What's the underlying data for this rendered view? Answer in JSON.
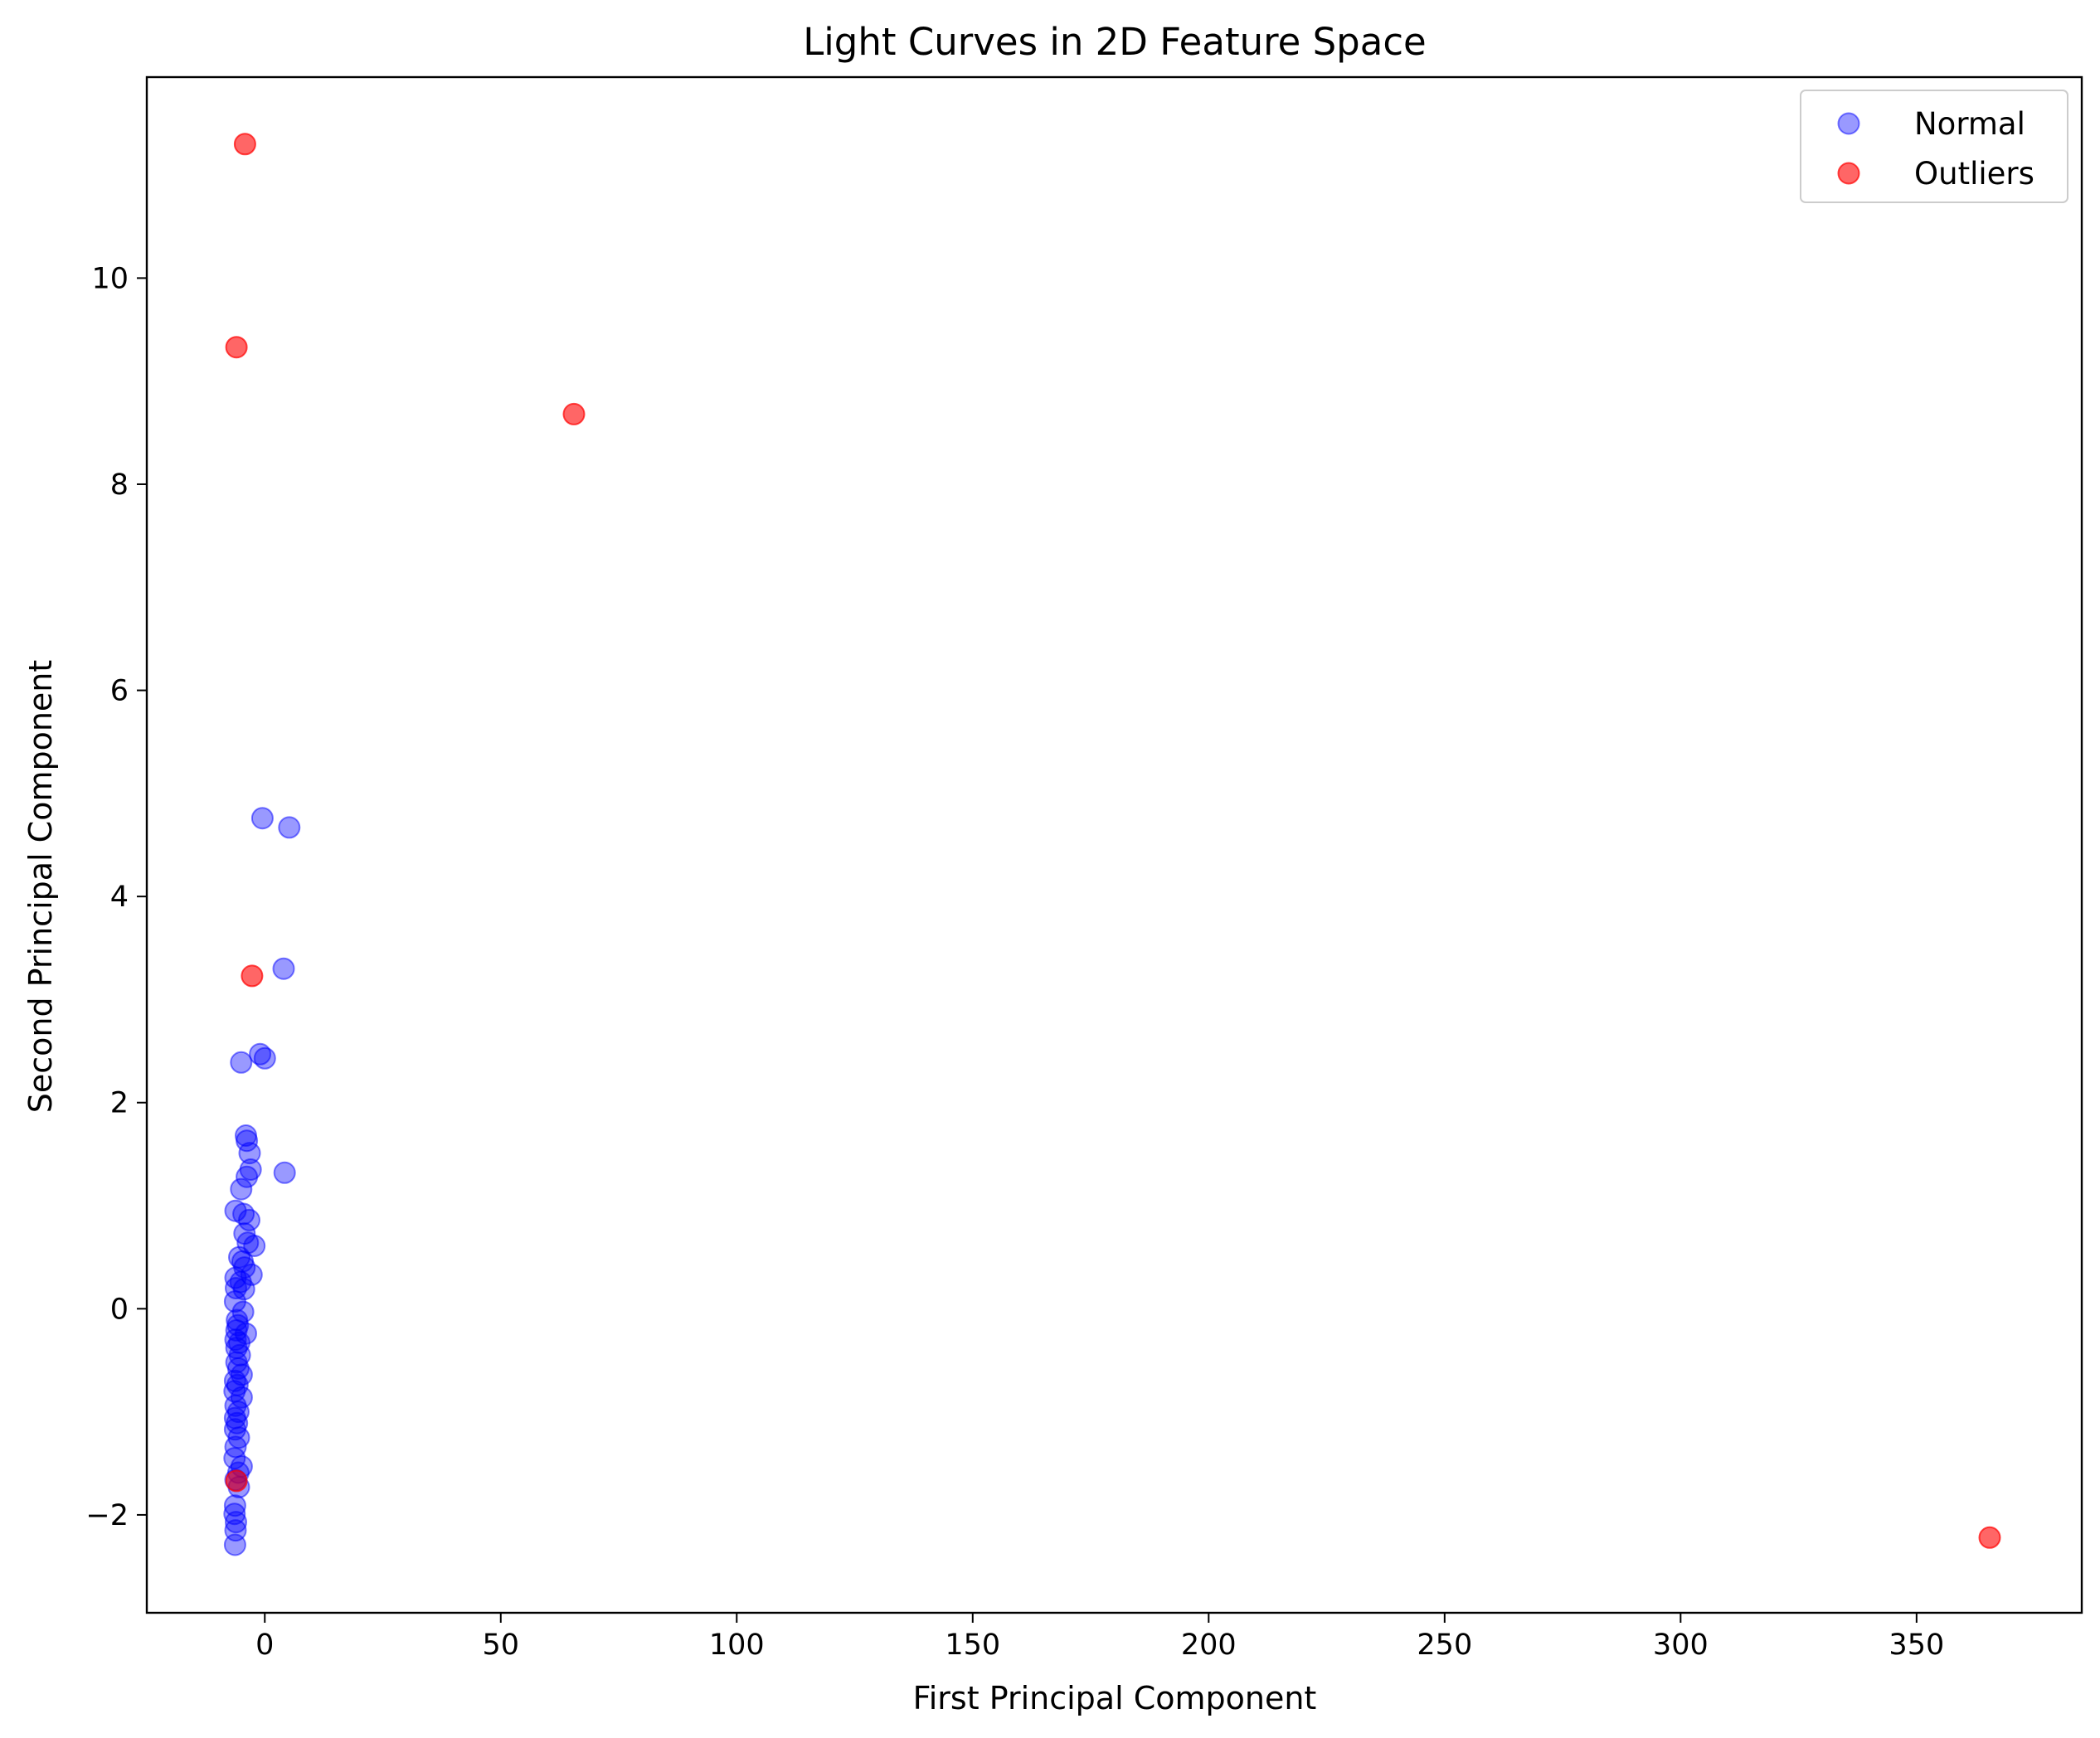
{
  "chart_data": {
    "type": "scatter",
    "title": "Light Curves in 2D Feature Space",
    "xlabel": "First Principal Component",
    "ylabel": "Second Principal Component",
    "xlim": [
      -25,
      385
    ],
    "ylim": [
      -2.95,
      11.95
    ],
    "xticks": [
      0,
      50,
      100,
      150,
      200,
      250,
      300,
      350
    ],
    "xtick_labels": [
      "0",
      "50",
      "100",
      "150",
      "200",
      "250",
      "300",
      "350"
    ],
    "yticks": [
      -2,
      0,
      2,
      4,
      6,
      8,
      10
    ],
    "ytick_labels": [
      "−2",
      "0",
      "2",
      "4",
      "6",
      "8",
      "10"
    ],
    "grid": false,
    "legend": {
      "placement": "upper-right",
      "entries": [
        "Normal",
        "Outliers"
      ]
    },
    "series": [
      {
        "name": "Normal",
        "color": "#0000ff",
        "alpha": 0.4,
        "points": [
          [
            -0.5,
            4.76
          ],
          [
            5.2,
            4.67
          ],
          [
            4.0,
            3.3
          ],
          [
            -1.0,
            2.47
          ],
          [
            0.0,
            2.43
          ],
          [
            -5.0,
            2.39
          ],
          [
            -4.0,
            1.68
          ],
          [
            -3.8,
            1.63
          ],
          [
            -3.2,
            1.51
          ],
          [
            -3.0,
            1.35
          ],
          [
            -3.8,
            1.28
          ],
          [
            4.2,
            1.32
          ],
          [
            -5.0,
            1.16
          ],
          [
            -6.2,
            0.95
          ],
          [
            -4.5,
            0.92
          ],
          [
            -3.3,
            0.86
          ],
          [
            -4.3,
            0.73
          ],
          [
            -3.6,
            0.64
          ],
          [
            -2.2,
            0.61
          ],
          [
            -5.4,
            0.5
          ],
          [
            -4.7,
            0.46
          ],
          [
            -4.3,
            0.4
          ],
          [
            -2.8,
            0.33
          ],
          [
            -6.2,
            0.3
          ],
          [
            -5.1,
            0.26
          ],
          [
            -6.1,
            0.2
          ],
          [
            -4.4,
            0.19
          ],
          [
            -6.3,
            0.07
          ],
          [
            -4.6,
            -0.03
          ],
          [
            -5.9,
            -0.11
          ],
          [
            -5.7,
            -0.16
          ],
          [
            -6.0,
            -0.21
          ],
          [
            -4.0,
            -0.24
          ],
          [
            -6.2,
            -0.3
          ],
          [
            -5.4,
            -0.33
          ],
          [
            -6.0,
            -0.38
          ],
          [
            -5.3,
            -0.45
          ],
          [
            -6.0,
            -0.52
          ],
          [
            -5.6,
            -0.58
          ],
          [
            -4.9,
            -0.64
          ],
          [
            -6.3,
            -0.7
          ],
          [
            -5.8,
            -0.74
          ],
          [
            -6.4,
            -0.8
          ],
          [
            -4.9,
            -0.86
          ],
          [
            -6.2,
            -0.94
          ],
          [
            -5.6,
            -1.0
          ],
          [
            -6.3,
            -1.06
          ],
          [
            -5.9,
            -1.11
          ],
          [
            -6.3,
            -1.17
          ],
          [
            -5.5,
            -1.25
          ],
          [
            -6.2,
            -1.34
          ],
          [
            -6.4,
            -1.45
          ],
          [
            -4.9,
            -1.53
          ],
          [
            -5.6,
            -1.59
          ],
          [
            -6.2,
            -1.66
          ],
          [
            -5.5,
            -1.73
          ],
          [
            -6.3,
            -1.91
          ],
          [
            -6.4,
            -1.99
          ],
          [
            -6.1,
            -2.07
          ],
          [
            -6.2,
            -2.15
          ],
          [
            -6.3,
            -2.29
          ]
        ]
      },
      {
        "name": "Outliers",
        "color": "#ff0000",
        "alpha": 0.6,
        "points": [
          [
            -4.2,
            11.3
          ],
          [
            -6.0,
            9.33
          ],
          [
            65.5,
            8.68
          ],
          [
            -2.7,
            3.23
          ],
          [
            -6.0,
            -1.67
          ],
          [
            365.5,
            -2.22
          ]
        ]
      }
    ]
  }
}
